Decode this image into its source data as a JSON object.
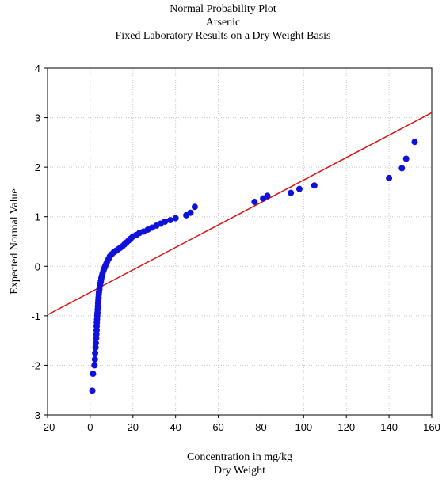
{
  "chart_data": {
    "type": "scatter",
    "title": "Normal Probability Plot",
    "subtitle": "Arsenic",
    "subtitle2": "Fixed Laboratory Results on a Dry Weight Basis",
    "xlabel": "Concentration in mg/kg",
    "xlabel2": "Dry Weight",
    "ylabel": "Expected Normal Value",
    "xlim": [
      -20,
      160
    ],
    "ylim": [
      -3,
      4
    ],
    "xticks": [
      -20,
      0,
      20,
      40,
      60,
      80,
      100,
      120,
      140,
      160
    ],
    "yticks": [
      -3,
      -2,
      -1,
      0,
      1,
      2,
      3,
      4
    ],
    "grid": true,
    "colors": {
      "points": "#1010dd",
      "line": "#e01010",
      "grid": "#c8c8c8"
    },
    "fit_line": {
      "x": [
        -20,
        160
      ],
      "y": [
        -0.98,
        3.1
      ]
    },
    "points": {
      "x": [
        1.0,
        1.3,
        2.0,
        2.2,
        2.3,
        2.5,
        2.6,
        2.8,
        2.9,
        3.0,
        3.0,
        3.1,
        3.2,
        3.3,
        3.4,
        3.5,
        3.6,
        3.7,
        3.8,
        3.9,
        4.0,
        4.1,
        4.3,
        4.5,
        4.7,
        5.0,
        5.2,
        5.5,
        5.8,
        6.2,
        6.6,
        7.0,
        7.5,
        8.0,
        8.6,
        9.2,
        10.0,
        11.0,
        12.0,
        13.0,
        14.0,
        15.0,
        16.0,
        17.0,
        18.0,
        19.0,
        20.0,
        21.5,
        23.0,
        25.0,
        27.0,
        29.0,
        31.0,
        33.0,
        35.0,
        37.5,
        40.0,
        45.0,
        47.0,
        49.0,
        77.0,
        81.0,
        83.0,
        94.0,
        98.0,
        105.0,
        140.0,
        146.0,
        148.0,
        152.0
      ],
      "y": [
        -2.51,
        -2.17,
        -2.0,
        -1.88,
        -1.75,
        -1.64,
        -1.55,
        -1.45,
        -1.37,
        -1.29,
        -1.21,
        -1.14,
        -1.07,
        -1.0,
        -0.94,
        -0.87,
        -0.81,
        -0.75,
        -0.69,
        -0.63,
        -0.57,
        -0.52,
        -0.46,
        -0.4,
        -0.35,
        -0.3,
        -0.24,
        -0.19,
        -0.14,
        -0.09,
        -0.04,
        0.0,
        0.05,
        0.1,
        0.15,
        0.2,
        0.24,
        0.28,
        0.31,
        0.34,
        0.37,
        0.4,
        0.44,
        0.48,
        0.52,
        0.56,
        0.6,
        0.63,
        0.67,
        0.7,
        0.74,
        0.78,
        0.82,
        0.86,
        0.9,
        0.93,
        0.97,
        1.03,
        1.08,
        1.2,
        1.3,
        1.37,
        1.42,
        1.48,
        1.56,
        1.63,
        1.78,
        1.98,
        2.17,
        2.51
      ]
    }
  }
}
